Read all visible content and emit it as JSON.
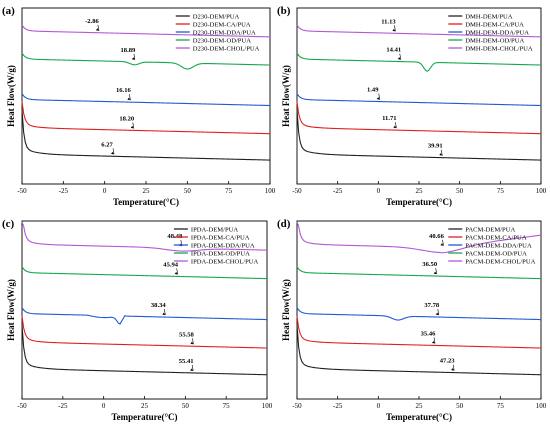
{
  "chart_data": [
    {
      "type": "line",
      "panel_label": "(a)",
      "xlabel": "Temperature(°C)",
      "ylabel": "Heat Flow(W/g)",
      "xlim": [
        -50,
        100
      ],
      "xticks": [
        -50,
        -25,
        0,
        25,
        50,
        75,
        100
      ],
      "legend_position": "top-right",
      "series": [
        {
          "name": "D230-DEM/PUA",
          "color": "#222222",
          "tg_label": "6.27",
          "tg": 6.27,
          "y": [
            -3.0,
            -3.12,
            -3.2,
            -3.25,
            -3.28,
            -3.3,
            -3.32
          ]
        },
        {
          "name": "D230-DEM-CA/PUA",
          "color": "#e02020",
          "tg_label": "18.20",
          "tg": 18.2,
          "y": [
            -1.3,
            -1.43,
            -1.5,
            -1.55,
            -1.58,
            -1.6,
            -1.6
          ]
        },
        {
          "name": "D230-DEM-DDA/PUA",
          "color": "#1f5bd6",
          "tg_label": "16.16",
          "tg": 16.16,
          "y": [
            -0.15,
            -0.22,
            -0.28,
            -0.32,
            -0.36,
            -0.38,
            -0.4
          ]
        },
        {
          "name": "D230-DEM-OD/PUA",
          "color": "#15a84a",
          "tg_label": "18.89",
          "tg": 18.89,
          "y": [
            0.9,
            0.85,
            0.8,
            0.75,
            0.7,
            0.75,
            0.75
          ]
        },
        {
          "name": "D230-DEM-CHOL/PUA",
          "color": "#b557d6",
          "tg_label": "-2.86",
          "tg": -2.86,
          "y": [
            1.6,
            1.57,
            1.55,
            1.52,
            1.5,
            1.48,
            1.45
          ]
        }
      ]
    },
    {
      "type": "line",
      "panel_label": "(b)",
      "xlabel": "Temperature(°C)",
      "ylabel": "Heat Flow(W/g)",
      "xlim": [
        -50,
        100
      ],
      "xticks": [
        -50,
        -25,
        0,
        25,
        50,
        75,
        100
      ],
      "legend_position": "top-right",
      "series": [
        {
          "name": "DMH-DEM/PUA",
          "color": "#222222",
          "tg_label": "39.91",
          "tg": 39.91,
          "y": [
            -3.0,
            -3.12,
            -3.2,
            -3.25,
            -3.28,
            -3.3,
            -3.32
          ]
        },
        {
          "name": "DMH-DEM-CA/PUA",
          "color": "#e02020",
          "tg_label": "11.71",
          "tg": 11.71,
          "y": [
            -1.3,
            -1.43,
            -1.5,
            -1.55,
            -1.58,
            -1.6,
            -1.6
          ]
        },
        {
          "name": "DMH-DEM-DDA/PUA",
          "color": "#1f5bd6",
          "tg_label": "1.49",
          "tg": 1.49,
          "y": [
            -0.15,
            -0.22,
            -0.28,
            -0.32,
            -0.36,
            -0.38,
            -0.4
          ]
        },
        {
          "name": "DMH-DEM-OD/PUA",
          "color": "#15a84a",
          "tg_label": "14.41",
          "tg": 14.41,
          "y": [
            0.9,
            0.85,
            0.8,
            0.75,
            0.7,
            0.75,
            0.75
          ]
        },
        {
          "name": "DMH-DEM-CHOL/PUA",
          "color": "#b557d6",
          "tg_label": "11.13",
          "tg": 11.13,
          "y": [
            1.6,
            1.57,
            1.55,
            1.52,
            1.5,
            1.48,
            1.45
          ]
        }
      ]
    },
    {
      "type": "line",
      "panel_label": "(c)",
      "xlabel": "Temperature(°C)",
      "ylabel": "Heat Flow(W/g)",
      "xlim": [
        -50,
        100
      ],
      "xticks": [
        -50,
        -25,
        0,
        25,
        50,
        75,
        100
      ],
      "legend_position": "top-right",
      "series": [
        {
          "name": "IPDA-DEM/PUA",
          "color": "#222222",
          "tg_label": "55.41",
          "tg": 55.41,
          "y": [
            -3.0,
            -3.12,
            -3.2,
            -3.25,
            -3.28,
            -3.3,
            -3.32
          ]
        },
        {
          "name": "IPDA-DEM-CA/PUA",
          "color": "#e02020",
          "tg_label": "55.58",
          "tg": 55.58,
          "y": [
            -1.3,
            -1.43,
            -1.5,
            -1.55,
            -1.58,
            -1.6,
            -1.6
          ]
        },
        {
          "name": "IPDA-DEM-DDA/PUA",
          "color": "#1f5bd6",
          "tg_label": "38.34",
          "tg": 38.34,
          "y": [
            -0.15,
            -0.22,
            -0.28,
            -0.32,
            -0.36,
            -0.38,
            -0.4
          ]
        },
        {
          "name": "IPDA-DEM-OD/PUA",
          "color": "#15a84a",
          "tg_label": "45.94",
          "tg": 45.94,
          "y": [
            0.9,
            0.85,
            0.8,
            0.75,
            0.7,
            0.75,
            0.75
          ]
        },
        {
          "name": "IPDA-DEM-CHOL/PUA",
          "color": "#b557d6",
          "tg_label": "48.48",
          "tg": 48.48,
          "y": [
            1.6,
            1.57,
            1.55,
            1.52,
            1.5,
            1.48,
            1.45
          ]
        }
      ]
    },
    {
      "type": "line",
      "panel_label": "(d)",
      "xlabel": "Temperature(°C)",
      "ylabel": "Heat Flow(W/g)",
      "xlim": [
        -50,
        100
      ],
      "xticks": [
        -50,
        -25,
        0,
        25,
        50,
        75,
        100
      ],
      "legend_position": "top-right",
      "series": [
        {
          "name": "PACM-DEM/PUA",
          "color": "#222222",
          "tg_label": "47.23",
          "tg": 47.23,
          "y": [
            -3.0,
            -3.12,
            -3.2,
            -3.25,
            -3.28,
            -3.3,
            -3.32
          ]
        },
        {
          "name": "PACM-DEM-CA/PUA",
          "color": "#e02020",
          "tg_label": "35.46",
          "tg": 35.46,
          "y": [
            -1.3,
            -1.43,
            -1.5,
            -1.55,
            -1.58,
            -1.6,
            -1.6
          ]
        },
        {
          "name": "PACM-DEM-DDA/PUA",
          "color": "#1f5bd6",
          "tg_label": "37.78",
          "tg": 37.78,
          "y": [
            -0.15,
            -0.22,
            -0.28,
            -0.32,
            -0.36,
            -0.38,
            -0.4
          ]
        },
        {
          "name": "PACM-DEM-OD/PUA",
          "color": "#15a84a",
          "tg_label": "36.50",
          "tg": 36.5,
          "y": [
            0.9,
            0.85,
            0.8,
            0.75,
            0.7,
            0.75,
            0.75
          ]
        },
        {
          "name": "PACM-DEM-CHOL/PUA",
          "color": "#b557d6",
          "tg_label": "40.66",
          "tg": 40.66,
          "y": [
            1.6,
            1.57,
            1.55,
            1.52,
            1.5,
            1.48,
            1.45
          ]
        }
      ]
    }
  ]
}
